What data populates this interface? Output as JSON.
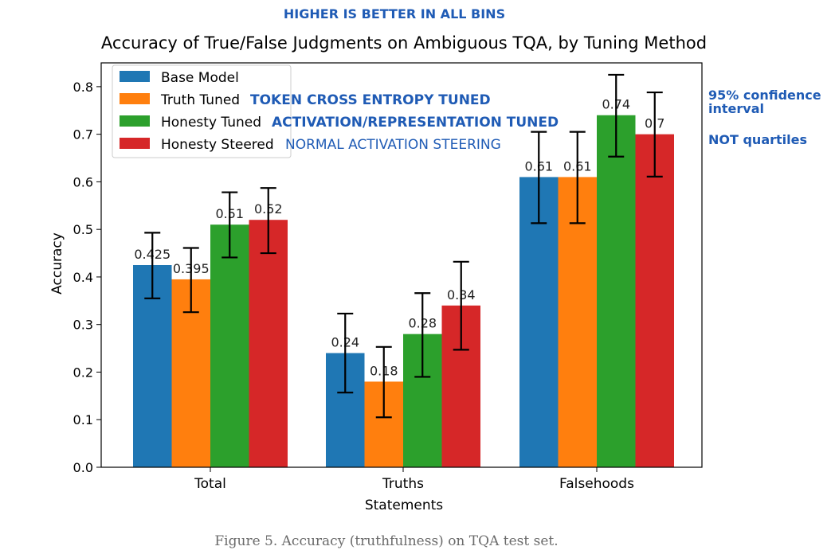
{
  "header_note": "HIGHER IS BETTER IN ALL BINS",
  "side_notes": {
    "ci_line1": "95% confidence",
    "ci_line2": "interval",
    "not_quartiles": "NOT quartiles"
  },
  "legend_notes": [
    "TOKEN CROSS ENTROPY TUNED",
    "ACTIVATION/REPRESENTATION TUNED",
    "NORMAL ACTIVATION STEERING"
  ],
  "caption": "Figure 5. Accuracy (truthfulness) on TQA test set.",
  "chart_data": {
    "type": "bar",
    "title": "Accuracy of True/False Judgments on Ambiguous TQA, by Tuning Method",
    "xlabel": "Statements",
    "ylabel": "Accuracy",
    "ylim": [
      0,
      0.85
    ],
    "yticks": [
      "0.0",
      "0.1",
      "0.2",
      "0.3",
      "0.4",
      "0.5",
      "0.6",
      "0.7",
      "0.8"
    ],
    "categories": [
      "Total",
      "Truths",
      "Falsehoods"
    ],
    "legend_position": "top-left",
    "series": [
      {
        "name": "Base Model",
        "color": "#1f77b4",
        "values": [
          0.425,
          0.24,
          0.61
        ],
        "labels": [
          "0.425",
          "0.24",
          "0.61"
        ],
        "err_low": [
          0.355,
          0.157,
          0.513
        ],
        "err_high": [
          0.493,
          0.323,
          0.705
        ]
      },
      {
        "name": "Truth Tuned",
        "color": "#ff7f0e",
        "values": [
          0.395,
          0.18,
          0.61
        ],
        "labels": [
          "0.395",
          "0.18",
          "0.61"
        ],
        "err_low": [
          0.326,
          0.105,
          0.513
        ],
        "err_high": [
          0.461,
          0.253,
          0.705
        ]
      },
      {
        "name": "Honesty Tuned",
        "color": "#2ca02c",
        "values": [
          0.51,
          0.28,
          0.74
        ],
        "labels": [
          "0.51",
          "0.28",
          "0.74"
        ],
        "err_low": [
          0.441,
          0.19,
          0.653
        ],
        "err_high": [
          0.578,
          0.366,
          0.825
        ]
      },
      {
        "name": "Honesty Steered",
        "color": "#d62728",
        "values": [
          0.52,
          0.34,
          0.7
        ],
        "labels": [
          "0.52",
          "0.34",
          "0.7"
        ],
        "err_low": [
          0.45,
          0.247,
          0.611
        ],
        "err_high": [
          0.587,
          0.432,
          0.788
        ]
      }
    ]
  }
}
